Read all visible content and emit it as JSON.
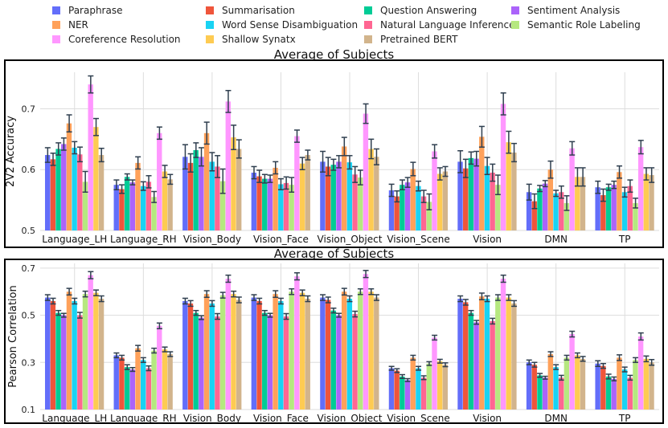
{
  "legend": {
    "items": [
      {
        "label": "Paraphrase",
        "color": "#636EFA"
      },
      {
        "label": "NER",
        "color": "#FFA15A"
      },
      {
        "label": "Coreference Resolution",
        "color": "#FF97FF"
      },
      {
        "label": "Summarisation",
        "color": "#EF553B"
      },
      {
        "label": "Word Sense Disambiguation",
        "color": "#19D3F3"
      },
      {
        "label": "Shallow Synatx",
        "color": "#FECB52"
      },
      {
        "label": "Question Answering",
        "color": "#00CC96"
      },
      {
        "label": "Natural Language Inference",
        "color": "#FF6692"
      },
      {
        "label": "Pretrained BERT",
        "color": "#D2B48C"
      },
      {
        "label": "Sentiment Analysis",
        "color": "#AB63FA"
      },
      {
        "label": "Semantic Role Labeling",
        "color": "#B6E880"
      }
    ]
  },
  "chart_data": [
    {
      "type": "bar",
      "title": "Average of Subjects",
      "xlabel": "",
      "ylabel": "2V2 Accuracy",
      "ylim": [
        0.5,
        0.76
      ],
      "yticks": [
        0.5,
        0.6,
        0.7
      ],
      "ytick_labels": [
        "0.5",
        "0.6",
        "0.7"
      ],
      "grid": true,
      "categories": [
        "Language_LH",
        "Language_RH",
        "Vision_Body",
        "Vision_Face",
        "Vision_Object",
        "Vision_Scene",
        "Vision",
        "DMN",
        "TP"
      ],
      "series": [
        {
          "name": "Paraphrase",
          "color": "#636EFA",
          "values": [
            0.624,
            0.575,
            0.621,
            0.595,
            0.613,
            0.566,
            0.613,
            0.563,
            0.571
          ],
          "errors": [
            0.012,
            0.008,
            0.02,
            0.01,
            0.017,
            0.01,
            0.018,
            0.013,
            0.01
          ]
        },
        {
          "name": "Summarisation",
          "color": "#EF553B",
          "values": [
            0.617,
            0.568,
            0.611,
            0.589,
            0.605,
            0.556,
            0.602,
            0.548,
            0.558
          ],
          "errors": [
            0.01,
            0.007,
            0.015,
            0.01,
            0.015,
            0.009,
            0.015,
            0.012,
            0.01
          ]
        },
        {
          "name": "Question Answering",
          "color": "#00CC96",
          "values": [
            0.634,
            0.588,
            0.632,
            0.585,
            0.608,
            0.575,
            0.619,
            0.569,
            0.571
          ],
          "errors": [
            0.01,
            0.005,
            0.012,
            0.007,
            0.009,
            0.008,
            0.01,
            0.005,
            0.005
          ]
        },
        {
          "name": "Sentiment Analysis",
          "color": "#AB63FA",
          "values": [
            0.642,
            0.579,
            0.621,
            0.585,
            0.613,
            0.579,
            0.618,
            0.577,
            0.575
          ],
          "errors": [
            0.01,
            0.004,
            0.015,
            0.006,
            0.01,
            0.008,
            0.012,
            0.005,
            0.006
          ]
        },
        {
          "name": "NER",
          "color": "#FFA15A",
          "values": [
            0.676,
            0.611,
            0.66,
            0.603,
            0.638,
            0.601,
            0.654,
            0.6,
            0.596
          ],
          "errors": [
            0.014,
            0.01,
            0.018,
            0.01,
            0.015,
            0.011,
            0.017,
            0.014,
            0.01
          ]
        },
        {
          "name": "Word Sense Disambiguation",
          "color": "#19D3F3",
          "values": [
            0.636,
            0.573,
            0.613,
            0.576,
            0.612,
            0.573,
            0.606,
            0.561,
            0.563
          ],
          "errors": [
            0.01,
            0.007,
            0.015,
            0.009,
            0.011,
            0.008,
            0.014,
            0.005,
            0.008
          ]
        },
        {
          "name": "Natural Language Inference",
          "color": "#FF6692",
          "values": [
            0.625,
            0.58,
            0.605,
            0.578,
            0.592,
            0.556,
            0.595,
            0.563,
            0.573
          ],
          "errors": [
            0.012,
            0.01,
            0.018,
            0.01,
            0.013,
            0.01,
            0.014,
            0.01,
            0.01
          ]
        },
        {
          "name": "Semantic Role Labeling",
          "color": "#B6E880",
          "values": [
            0.58,
            0.555,
            0.581,
            0.575,
            0.587,
            0.547,
            0.575,
            0.545,
            0.545
          ],
          "errors": [
            0.017,
            0.009,
            0.02,
            0.012,
            0.012,
            0.013,
            0.016,
            0.012,
            0.008
          ]
        },
        {
          "name": "Coreference Resolution",
          "color": "#FF97FF",
          "values": [
            0.74,
            0.66,
            0.712,
            0.655,
            0.692,
            0.63,
            0.708,
            0.635,
            0.637
          ],
          "errors": [
            0.014,
            0.01,
            0.018,
            0.01,
            0.016,
            0.011,
            0.018,
            0.011,
            0.011
          ]
        },
        {
          "name": "Shallow Synatx",
          "color": "#FECB52",
          "values": [
            0.67,
            0.597,
            0.653,
            0.61,
            0.634,
            0.593,
            0.645,
            0.588,
            0.593
          ],
          "errors": [
            0.014,
            0.01,
            0.02,
            0.01,
            0.016,
            0.01,
            0.018,
            0.015,
            0.01
          ]
        },
        {
          "name": "Pretrained BERT",
          "color": "#D2B48C",
          "values": [
            0.624,
            0.584,
            0.634,
            0.624,
            0.621,
            0.597,
            0.628,
            0.588,
            0.591
          ],
          "errors": [
            0.011,
            0.008,
            0.015,
            0.008,
            0.013,
            0.008,
            0.015,
            0.015,
            0.012
          ]
        }
      ]
    },
    {
      "type": "bar",
      "title": "Average of Subjects",
      "xlabel": "",
      "ylabel": "Pearson Correlation",
      "ylim": [
        0.1,
        0.72
      ],
      "yticks": [
        0.1,
        0.3,
        0.5,
        0.7
      ],
      "ytick_labels": [
        "0.1",
        "0.3",
        "0.5",
        "0.7"
      ],
      "grid": true,
      "categories": [
        "Language_LH",
        "Language_RH",
        "Vision_Body",
        "Vision_Face",
        "Vision_Object",
        "Vision_Scene",
        "Vision",
        "DMN",
        "TP"
      ],
      "series": [
        {
          "name": "Paraphrase",
          "color": "#636EFA",
          "values": [
            0.575,
            0.33,
            0.56,
            0.575,
            0.575,
            0.275,
            0.57,
            0.3,
            0.295
          ],
          "errors": [
            0.012,
            0.01,
            0.012,
            0.012,
            0.012,
            0.008,
            0.012,
            0.01,
            0.012
          ]
        },
        {
          "name": "Summarisation",
          "color": "#EF553B",
          "values": [
            0.56,
            0.32,
            0.55,
            0.56,
            0.565,
            0.265,
            0.555,
            0.29,
            0.285
          ],
          "errors": [
            0.012,
            0.01,
            0.012,
            0.012,
            0.012,
            0.008,
            0.012,
            0.01,
            0.01
          ]
        },
        {
          "name": "Question Answering",
          "color": "#00CC96",
          "values": [
            0.51,
            0.28,
            0.51,
            0.51,
            0.52,
            0.24,
            0.51,
            0.245,
            0.24
          ],
          "errors": [
            0.01,
            0.01,
            0.01,
            0.01,
            0.01,
            0.008,
            0.01,
            0.008,
            0.01
          ]
        },
        {
          "name": "Sentiment Analysis",
          "color": "#AB63FA",
          "values": [
            0.5,
            0.27,
            0.49,
            0.5,
            0.5,
            0.225,
            0.47,
            0.235,
            0.23
          ],
          "errors": [
            0.008,
            0.008,
            0.008,
            0.008,
            0.008,
            0.006,
            0.008,
            0.006,
            0.008
          ]
        },
        {
          "name": "NER",
          "color": "#FFA15A",
          "values": [
            0.6,
            0.36,
            0.59,
            0.59,
            0.6,
            0.32,
            0.58,
            0.335,
            0.32
          ],
          "errors": [
            0.014,
            0.012,
            0.014,
            0.014,
            0.014,
            0.01,
            0.014,
            0.01,
            0.012
          ]
        },
        {
          "name": "Word Sense Disambiguation",
          "color": "#19D3F3",
          "values": [
            0.56,
            0.31,
            0.55,
            0.56,
            0.57,
            0.275,
            0.57,
            0.28,
            0.27
          ],
          "errors": [
            0.012,
            0.01,
            0.012,
            0.012,
            0.012,
            0.008,
            0.012,
            0.01,
            0.01
          ]
        },
        {
          "name": "Natural Language Inference",
          "color": "#FF6692",
          "values": [
            0.5,
            0.275,
            0.495,
            0.495,
            0.505,
            0.235,
            0.475,
            0.235,
            0.235
          ],
          "errors": [
            0.012,
            0.01,
            0.012,
            0.012,
            0.012,
            0.008,
            0.012,
            0.01,
            0.01
          ]
        },
        {
          "name": "Semantic Role Labeling",
          "color": "#B6E880",
          "values": [
            0.59,
            0.35,
            0.585,
            0.6,
            0.6,
            0.295,
            0.575,
            0.32,
            0.31
          ],
          "errors": [
            0.012,
            0.01,
            0.012,
            0.012,
            0.012,
            0.008,
            0.012,
            0.01,
            0.01
          ]
        },
        {
          "name": "Coreference Resolution",
          "color": "#FF97FF",
          "values": [
            0.67,
            0.455,
            0.655,
            0.665,
            0.675,
            0.405,
            0.655,
            0.42,
            0.41
          ],
          "errors": [
            0.015,
            0.012,
            0.015,
            0.015,
            0.015,
            0.01,
            0.015,
            0.012,
            0.015
          ]
        },
        {
          "name": "Shallow Synatx",
          "color": "#FECB52",
          "values": [
            0.595,
            0.355,
            0.59,
            0.595,
            0.6,
            0.305,
            0.575,
            0.33,
            0.315
          ],
          "errors": [
            0.012,
            0.01,
            0.012,
            0.012,
            0.012,
            0.008,
            0.012,
            0.01,
            0.012
          ]
        },
        {
          "name": "Pretrained BERT",
          "color": "#D2B48C",
          "values": [
            0.57,
            0.335,
            0.565,
            0.57,
            0.575,
            0.29,
            0.55,
            0.315,
            0.3
          ],
          "errors": [
            0.012,
            0.01,
            0.012,
            0.012,
            0.012,
            0.008,
            0.012,
            0.01,
            0.012
          ]
        }
      ]
    }
  ]
}
